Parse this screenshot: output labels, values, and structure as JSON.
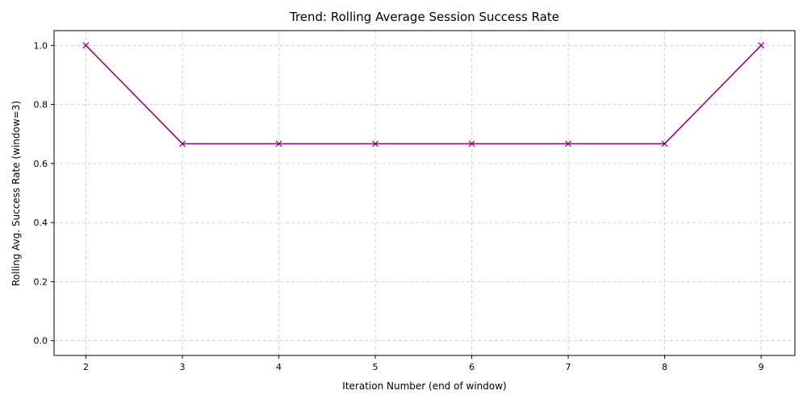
{
  "chart_data": {
    "type": "line",
    "title": "Trend: Rolling Average Session Success Rate",
    "xlabel": "Iteration Number (end of window)",
    "ylabel": "Rolling Avg. Success Rate (window=3)",
    "xlim": [
      1.67,
      9.35
    ],
    "ylim": [
      -0.05,
      1.05
    ],
    "x_ticks": [
      2,
      3,
      4,
      5,
      6,
      7,
      8,
      9
    ],
    "y_ticks": [
      0.0,
      0.2,
      0.4,
      0.6,
      0.8,
      1.0
    ],
    "grid": true,
    "series": [
      {
        "x": [
          2,
          3,
          4,
          5,
          6,
          7,
          8,
          9
        ],
        "values": [
          1.0,
          0.667,
          0.667,
          0.667,
          0.667,
          0.667,
          0.667,
          1.0
        ],
        "color": "#800080",
        "marker": "x"
      }
    ]
  }
}
